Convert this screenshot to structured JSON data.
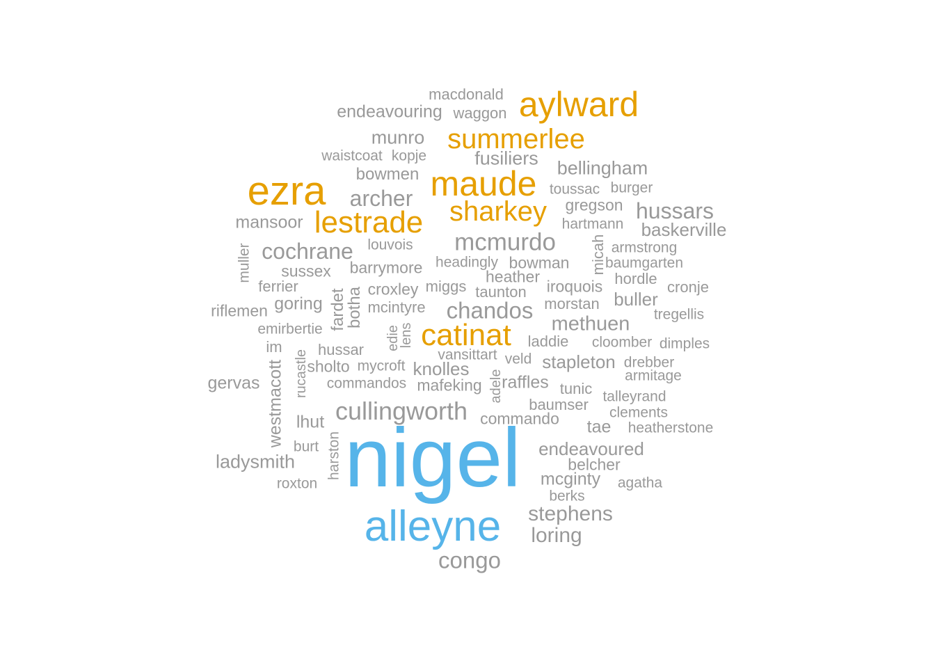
{
  "colors": {
    "blue": "#56B4E9",
    "orange": "#E69F00",
    "gray": "#999999"
  },
  "words": [
    {
      "text": "nigel",
      "color": "blue"
    },
    {
      "text": "alleyne",
      "color": "blue"
    },
    {
      "text": "ezra",
      "color": "orange"
    },
    {
      "text": "aylward",
      "color": "orange"
    },
    {
      "text": "maude",
      "color": "orange"
    },
    {
      "text": "summerlee",
      "color": "orange"
    },
    {
      "text": "sharkey",
      "color": "orange"
    },
    {
      "text": "lestrade",
      "color": "orange"
    },
    {
      "text": "catinat",
      "color": "orange"
    },
    {
      "text": "macdonald",
      "color": "gray"
    },
    {
      "text": "endeavouring",
      "color": "gray"
    },
    {
      "text": "waggon",
      "color": "gray"
    },
    {
      "text": "munro",
      "color": "gray"
    },
    {
      "text": "waistcoat",
      "color": "gray"
    },
    {
      "text": "kopje",
      "color": "gray"
    },
    {
      "text": "fusiliers",
      "color": "gray"
    },
    {
      "text": "bellingham",
      "color": "gray"
    },
    {
      "text": "bowmen",
      "color": "gray"
    },
    {
      "text": "toussac",
      "color": "gray"
    },
    {
      "text": "burger",
      "color": "gray"
    },
    {
      "text": "archer",
      "color": "gray"
    },
    {
      "text": "gregson",
      "color": "gray"
    },
    {
      "text": "hussars",
      "color": "gray"
    },
    {
      "text": "mansoor",
      "color": "gray"
    },
    {
      "text": "hartmann",
      "color": "gray"
    },
    {
      "text": "baskerville",
      "color": "gray"
    },
    {
      "text": "mcmurdo",
      "color": "gray"
    },
    {
      "text": "cochrane",
      "color": "gray"
    },
    {
      "text": "louvois",
      "color": "gray"
    },
    {
      "text": "micah",
      "color": "gray"
    },
    {
      "text": "armstrong",
      "color": "gray"
    },
    {
      "text": "muller",
      "color": "gray"
    },
    {
      "text": "headingly",
      "color": "gray"
    },
    {
      "text": "bowman",
      "color": "gray"
    },
    {
      "text": "baumgarten",
      "color": "gray"
    },
    {
      "text": "sussex",
      "color": "gray"
    },
    {
      "text": "barrymore",
      "color": "gray"
    },
    {
      "text": "heather",
      "color": "gray"
    },
    {
      "text": "hordle",
      "color": "gray"
    },
    {
      "text": "ferrier",
      "color": "gray"
    },
    {
      "text": "croxley",
      "color": "gray"
    },
    {
      "text": "miggs",
      "color": "gray"
    },
    {
      "text": "taunton",
      "color": "gray"
    },
    {
      "text": "iroquois",
      "color": "gray"
    },
    {
      "text": "cronje",
      "color": "gray"
    },
    {
      "text": "fardet",
      "color": "gray"
    },
    {
      "text": "botha",
      "color": "gray"
    },
    {
      "text": "riflemen",
      "color": "gray"
    },
    {
      "text": "goring",
      "color": "gray"
    },
    {
      "text": "mcintyre",
      "color": "gray"
    },
    {
      "text": "chandos",
      "color": "gray"
    },
    {
      "text": "morstan",
      "color": "gray"
    },
    {
      "text": "buller",
      "color": "gray"
    },
    {
      "text": "tregellis",
      "color": "gray"
    },
    {
      "text": "emirbertie",
      "color": "gray"
    },
    {
      "text": "edie",
      "color": "gray"
    },
    {
      "text": "lens",
      "color": "gray"
    },
    {
      "text": "methuen",
      "color": "gray"
    },
    {
      "text": "im",
      "color": "gray"
    },
    {
      "text": "hussar",
      "color": "gray"
    },
    {
      "text": "vansittart",
      "color": "gray"
    },
    {
      "text": "laddie",
      "color": "gray"
    },
    {
      "text": "cloomber",
      "color": "gray"
    },
    {
      "text": "dimples",
      "color": "gray"
    },
    {
      "text": "westmacott",
      "color": "gray"
    },
    {
      "text": "rucastle",
      "color": "gray"
    },
    {
      "text": "sholto",
      "color": "gray"
    },
    {
      "text": "mycroft",
      "color": "gray"
    },
    {
      "text": "knolles",
      "color": "gray"
    },
    {
      "text": "veld",
      "color": "gray"
    },
    {
      "text": "stapleton",
      "color": "gray"
    },
    {
      "text": "drebber",
      "color": "gray"
    },
    {
      "text": "armitage",
      "color": "gray"
    },
    {
      "text": "gervas",
      "color": "gray"
    },
    {
      "text": "commandos",
      "color": "gray"
    },
    {
      "text": "mafeking",
      "color": "gray"
    },
    {
      "text": "adele",
      "color": "gray"
    },
    {
      "text": "raffles",
      "color": "gray"
    },
    {
      "text": "tunic",
      "color": "gray"
    },
    {
      "text": "talleyrand",
      "color": "gray"
    },
    {
      "text": "cullingworth",
      "color": "gray"
    },
    {
      "text": "baumser",
      "color": "gray"
    },
    {
      "text": "clements",
      "color": "gray"
    },
    {
      "text": "lhut",
      "color": "gray"
    },
    {
      "text": "commando",
      "color": "gray"
    },
    {
      "text": "tae",
      "color": "gray"
    },
    {
      "text": "heatherstone",
      "color": "gray"
    },
    {
      "text": "burt",
      "color": "gray"
    },
    {
      "text": "harston",
      "color": "gray"
    },
    {
      "text": "endeavoured",
      "color": "gray"
    },
    {
      "text": "ladysmith",
      "color": "gray"
    },
    {
      "text": "belcher",
      "color": "gray"
    },
    {
      "text": "mcginty",
      "color": "gray"
    },
    {
      "text": "roxton",
      "color": "gray"
    },
    {
      "text": "agatha",
      "color": "gray"
    },
    {
      "text": "berks",
      "color": "gray"
    },
    {
      "text": "stephens",
      "color": "gray"
    },
    {
      "text": "loring",
      "color": "gray"
    },
    {
      "text": "congo",
      "color": "gray"
    }
  ]
}
